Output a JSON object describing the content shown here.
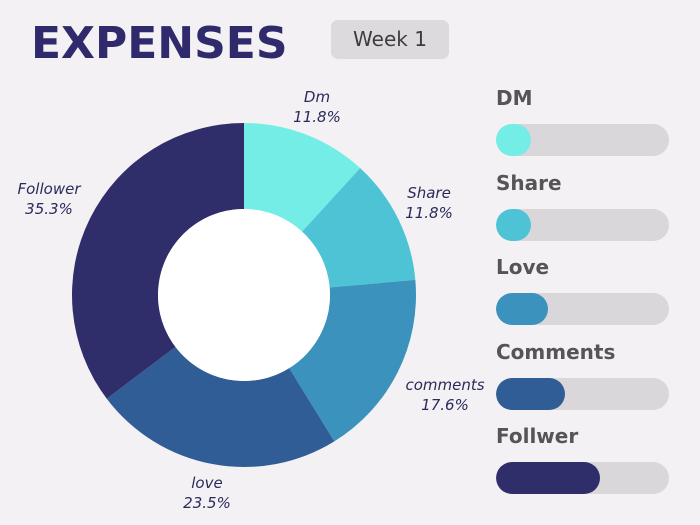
{
  "header": {
    "title": "EXPENSES",
    "week_badge": "Week 1"
  },
  "colors": {
    "title": "#2e2a6b",
    "track": "#d9d7da",
    "slices": [
      "#74ede6",
      "#4fc3d6",
      "#3a92bd",
      "#315d96",
      "#302d6b"
    ]
  },
  "chart_data": [
    {
      "type": "pie",
      "variant": "donut",
      "start": "top, clockwise",
      "slices": [
        {
          "label": "Dm",
          "value": 11.8,
          "value_label": "11.8%"
        },
        {
          "label": "Share",
          "value": 11.8,
          "value_label": "11.8%"
        },
        {
          "label": "comments",
          "value": 17.6,
          "value_label": "17.6%"
        },
        {
          "label": "love",
          "value": 23.5,
          "value_label": "23.5%"
        },
        {
          "label": "Follower",
          "value": 35.3,
          "value_label": "35.3%"
        }
      ]
    },
    {
      "type": "bar",
      "orientation": "horizontal",
      "value_unit": "fraction of track",
      "items": [
        {
          "label": "DM",
          "fill": 0.2
        },
        {
          "label": "Share",
          "fill": 0.2
        },
        {
          "label": "Love",
          "fill": 0.3
        },
        {
          "label": "Comments",
          "fill": 0.4
        },
        {
          "label": "Follwer",
          "fill": 0.6
        }
      ]
    }
  ]
}
